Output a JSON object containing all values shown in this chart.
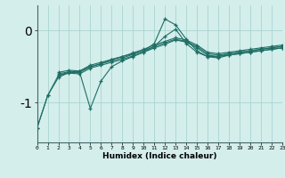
{
  "xlabel": "Humidex (Indice chaleur)",
  "bg_color": "#d4eeec",
  "line_color": "#1e6e64",
  "grid_color": "#aad4d0",
  "y_ticks": [
    -1,
    0
  ],
  "xlim": [
    0,
    23
  ],
  "ylim": [
    -1.55,
    0.35
  ],
  "lines": [
    {
      "x": [
        0,
        1,
        2,
        3,
        4,
        5,
        6,
        7,
        8,
        9,
        10,
        11,
        12,
        13,
        14,
        15,
        16,
        17,
        18,
        19,
        20,
        21,
        22,
        23
      ],
      "y": [
        -1.35,
        -0.9,
        -0.65,
        -0.58,
        -0.56,
        -0.5,
        -0.46,
        -0.4,
        -0.36,
        -0.32,
        -0.28,
        -0.18,
        0.16,
        0.08,
        -0.12,
        -0.28,
        -0.36,
        -0.38,
        -0.34,
        -0.32,
        -0.3,
        -0.28,
        -0.26,
        -0.24
      ]
    },
    {
      "x": [
        0,
        1,
        2,
        3,
        4,
        5,
        6,
        7,
        8,
        9,
        10,
        11,
        12,
        13,
        14,
        15,
        16,
        17,
        18,
        19,
        20,
        21,
        22,
        23
      ],
      "y": [
        -1.35,
        -0.9,
        -0.62,
        -0.58,
        -0.58,
        -1.08,
        -0.7,
        -0.5,
        -0.42,
        -0.36,
        -0.3,
        -0.22,
        -0.08,
        0.02,
        -0.18,
        -0.3,
        -0.36,
        -0.36,
        -0.32,
        -0.3,
        -0.28,
        -0.26,
        -0.24,
        -0.22
      ]
    },
    {
      "x": [
        2,
        3,
        4,
        5,
        6,
        7,
        8,
        9,
        10,
        11,
        12,
        13,
        14,
        15,
        16,
        17,
        18,
        19,
        20,
        21,
        22,
        23
      ],
      "y": [
        -0.6,
        -0.57,
        -0.58,
        -0.5,
        -0.46,
        -0.42,
        -0.38,
        -0.33,
        -0.28,
        -0.22,
        -0.17,
        -0.12,
        -0.15,
        -0.22,
        -0.32,
        -0.34,
        -0.32,
        -0.3,
        -0.28,
        -0.26,
        -0.24,
        -0.22
      ]
    },
    {
      "x": [
        2,
        3,
        4,
        5,
        6,
        7,
        8,
        9,
        10,
        11,
        12,
        13,
        14,
        15,
        16,
        17,
        18,
        19,
        20,
        21,
        22,
        23
      ],
      "y": [
        -0.62,
        -0.59,
        -0.6,
        -0.52,
        -0.48,
        -0.44,
        -0.4,
        -0.35,
        -0.3,
        -0.24,
        -0.19,
        -0.13,
        -0.16,
        -0.24,
        -0.34,
        -0.36,
        -0.34,
        -0.32,
        -0.3,
        -0.28,
        -0.26,
        -0.24
      ]
    },
    {
      "x": [
        2,
        3,
        4,
        5,
        6,
        7,
        8,
        9,
        10,
        11,
        12,
        13,
        14,
        15,
        16,
        17,
        18,
        19,
        20,
        21,
        22,
        23
      ],
      "y": [
        -0.58,
        -0.55,
        -0.56,
        -0.48,
        -0.44,
        -0.4,
        -0.36,
        -0.31,
        -0.26,
        -0.2,
        -0.15,
        -0.1,
        -0.13,
        -0.2,
        -0.3,
        -0.32,
        -0.3,
        -0.28,
        -0.26,
        -0.24,
        -0.22,
        -0.2
      ]
    }
  ]
}
